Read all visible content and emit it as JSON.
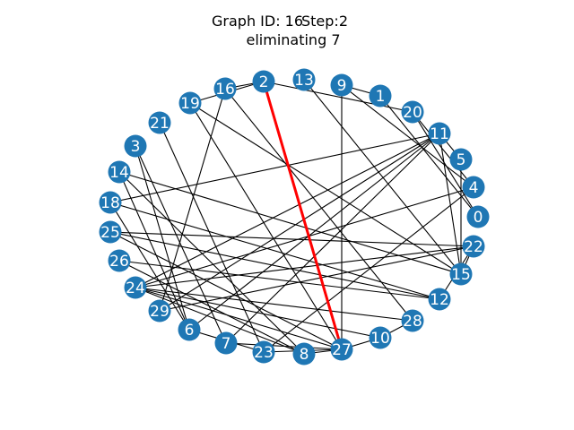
{
  "title": {
    "graph_label": "Graph ID: 16",
    "step_label": "Step:2",
    "subtitle": "eliminating 7"
  },
  "colors": {
    "node": "#1f77b4",
    "edge": "#000000",
    "highlight_edge": "#ff0000",
    "label": "#ffffff"
  },
  "graph": {
    "nodes": [
      "0",
      "1",
      "2",
      "3",
      "4",
      "5",
      "6",
      "7",
      "8",
      "9",
      "10",
      "11",
      "12",
      "13",
      "14",
      "15",
      "16",
      "18",
      "19",
      "20",
      "21",
      "22",
      "23",
      "24",
      "25",
      "26",
      "27",
      "28",
      "29"
    ],
    "highlighted_edge": [
      "2",
      "27"
    ],
    "edges": [
      [
        "2",
        "27"
      ],
      [
        "16",
        "2"
      ],
      [
        "19",
        "2"
      ],
      [
        "2",
        "20"
      ],
      [
        "16",
        "28"
      ],
      [
        "16",
        "29"
      ],
      [
        "19",
        "15"
      ],
      [
        "19",
        "27"
      ],
      [
        "13",
        "15"
      ],
      [
        "9",
        "1"
      ],
      [
        "9",
        "4"
      ],
      [
        "9",
        "27"
      ],
      [
        "1",
        "0"
      ],
      [
        "20",
        "0"
      ],
      [
        "20",
        "4"
      ],
      [
        "11",
        "18"
      ],
      [
        "11",
        "5"
      ],
      [
        "11",
        "15"
      ],
      [
        "11",
        "6"
      ],
      [
        "11",
        "29"
      ],
      [
        "11",
        "7"
      ],
      [
        "11",
        "24"
      ],
      [
        "5",
        "15"
      ],
      [
        "4",
        "24"
      ],
      [
        "4",
        "23"
      ],
      [
        "14",
        "8"
      ],
      [
        "14",
        "15"
      ],
      [
        "14",
        "6"
      ],
      [
        "3",
        "7"
      ],
      [
        "3",
        "6"
      ],
      [
        "18",
        "12"
      ],
      [
        "18",
        "6"
      ],
      [
        "25",
        "22"
      ],
      [
        "25",
        "12"
      ],
      [
        "25",
        "27"
      ],
      [
        "26",
        "8"
      ],
      [
        "26",
        "12"
      ],
      [
        "24",
        "22"
      ],
      [
        "24",
        "10"
      ],
      [
        "24",
        "28"
      ],
      [
        "24",
        "8"
      ],
      [
        "21",
        "23"
      ],
      [
        "12",
        "22"
      ],
      [
        "15",
        "22"
      ],
      [
        "23",
        "27"
      ],
      [
        "8",
        "27"
      ],
      [
        "27",
        "10"
      ],
      [
        "10",
        "28"
      ],
      [
        "29",
        "22"
      ],
      [
        "6",
        "23"
      ],
      [
        "7",
        "27"
      ],
      [
        "24",
        "27"
      ]
    ]
  }
}
